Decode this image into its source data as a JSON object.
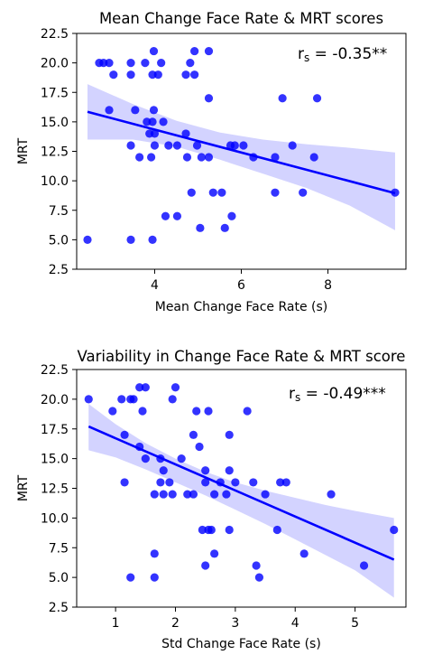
{
  "chart_data": [
    {
      "type": "scatter",
      "title": "Mean Change Face Rate & MRT scores",
      "xlabel": "Mean Change Face Rate (s)",
      "ylabel": "MRT",
      "annotation": {
        "base": "r",
        "sub": "s",
        "text": " = -0.35**"
      },
      "xlim": [
        2.2,
        9.8
      ],
      "ylim": [
        2.5,
        22.5
      ],
      "xticks": [
        4,
        6,
        8
      ],
      "yticks": [
        2.5,
        5.0,
        7.5,
        10.0,
        12.5,
        15.0,
        17.5,
        20.0,
        22.5
      ],
      "grid": false,
      "point_color": "#0000ff",
      "band_color": "#c8c8ff",
      "points": [
        {
          "x": 2.45,
          "y": 5
        },
        {
          "x": 3.45,
          "y": 5
        },
        {
          "x": 3.95,
          "y": 5
        },
        {
          "x": 5.05,
          "y": 6
        },
        {
          "x": 5.62,
          "y": 6
        },
        {
          "x": 5.78,
          "y": 7
        },
        {
          "x": 4.25,
          "y": 7
        },
        {
          "x": 4.52,
          "y": 7
        },
        {
          "x": 4.85,
          "y": 9
        },
        {
          "x": 5.35,
          "y": 9
        },
        {
          "x": 5.55,
          "y": 9
        },
        {
          "x": 6.78,
          "y": 9
        },
        {
          "x": 7.42,
          "y": 9
        },
        {
          "x": 9.55,
          "y": 9
        },
        {
          "x": 3.65,
          "y": 12
        },
        {
          "x": 3.92,
          "y": 12
        },
        {
          "x": 4.75,
          "y": 12
        },
        {
          "x": 5.08,
          "y": 12
        },
        {
          "x": 5.25,
          "y": 12
        },
        {
          "x": 6.28,
          "y": 12
        },
        {
          "x": 6.78,
          "y": 12
        },
        {
          "x": 7.68,
          "y": 12
        },
        {
          "x": 3.45,
          "y": 13
        },
        {
          "x": 4.0,
          "y": 13
        },
        {
          "x": 4.32,
          "y": 13
        },
        {
          "x": 4.52,
          "y": 13
        },
        {
          "x": 4.98,
          "y": 13
        },
        {
          "x": 5.75,
          "y": 13
        },
        {
          "x": 5.85,
          "y": 13
        },
        {
          "x": 6.05,
          "y": 13
        },
        {
          "x": 7.18,
          "y": 13
        },
        {
          "x": 3.88,
          "y": 14
        },
        {
          "x": 4.0,
          "y": 14
        },
        {
          "x": 4.72,
          "y": 14
        },
        {
          "x": 3.82,
          "y": 15
        },
        {
          "x": 3.95,
          "y": 15
        },
        {
          "x": 4.2,
          "y": 15
        },
        {
          "x": 3.55,
          "y": 16
        },
        {
          "x": 3.98,
          "y": 16
        },
        {
          "x": 2.95,
          "y": 16
        },
        {
          "x": 5.25,
          "y": 17
        },
        {
          "x": 6.95,
          "y": 17
        },
        {
          "x": 7.75,
          "y": 17
        },
        {
          "x": 3.45,
          "y": 19
        },
        {
          "x": 3.95,
          "y": 19
        },
        {
          "x": 4.08,
          "y": 19
        },
        {
          "x": 4.92,
          "y": 19
        },
        {
          "x": 3.05,
          "y": 19
        },
        {
          "x": 4.72,
          "y": 19
        },
        {
          "x": 2.72,
          "y": 20
        },
        {
          "x": 2.82,
          "y": 20
        },
        {
          "x": 2.95,
          "y": 20
        },
        {
          "x": 3.45,
          "y": 20
        },
        {
          "x": 3.78,
          "y": 20
        },
        {
          "x": 4.15,
          "y": 20
        },
        {
          "x": 4.82,
          "y": 20
        },
        {
          "x": 3.98,
          "y": 21
        },
        {
          "x": 4.92,
          "y": 21
        },
        {
          "x": 5.25,
          "y": 21
        }
      ],
      "regression": {
        "x": [
          2.45,
          9.55
        ],
        "y": [
          15.85,
          8.95
        ]
      },
      "ci_band": {
        "x": [
          2.45,
          3.5,
          4.5,
          5.5,
          6.5,
          7.5,
          8.5,
          9.55
        ],
        "upper": [
          18.2,
          16.5,
          15.1,
          14.1,
          13.5,
          13.1,
          12.8,
          12.4
        ],
        "lower": [
          13.5,
          13.5,
          12.9,
          11.8,
          10.6,
          9.4,
          7.9,
          5.8
        ]
      }
    },
    {
      "type": "scatter",
      "title": "Variability in Change Face Rate & MRT score",
      "xlabel": "Std Change Face Rate (s)",
      "ylabel": "MRT",
      "annotation": {
        "base": "r",
        "sub": "s",
        "text": " = -0.49***"
      },
      "xlim": [
        0.35,
        5.85
      ],
      "ylim": [
        2.5,
        22.5
      ],
      "xticks": [
        1,
        2,
        3,
        4,
        5
      ],
      "yticks": [
        2.5,
        5.0,
        7.5,
        10.0,
        12.5,
        15.0,
        17.5,
        20.0,
        22.5
      ],
      "grid": false,
      "point_color": "#0000ff",
      "band_color": "#c8c8ff",
      "points": [
        {
          "x": 0.55,
          "y": 20
        },
        {
          "x": 0.95,
          "y": 19
        },
        {
          "x": 1.1,
          "y": 20
        },
        {
          "x": 1.25,
          "y": 20
        },
        {
          "x": 1.3,
          "y": 20
        },
        {
          "x": 1.4,
          "y": 21
        },
        {
          "x": 1.5,
          "y": 21
        },
        {
          "x": 1.45,
          "y": 19
        },
        {
          "x": 1.95,
          "y": 20
        },
        {
          "x": 2.0,
          "y": 21
        },
        {
          "x": 2.35,
          "y": 19
        },
        {
          "x": 2.55,
          "y": 19
        },
        {
          "x": 3.2,
          "y": 19
        },
        {
          "x": 1.15,
          "y": 17
        },
        {
          "x": 2.3,
          "y": 17
        },
        {
          "x": 2.9,
          "y": 17
        },
        {
          "x": 1.4,
          "y": 16
        },
        {
          "x": 2.4,
          "y": 16
        },
        {
          "x": 1.5,
          "y": 15
        },
        {
          "x": 1.75,
          "y": 15
        },
        {
          "x": 2.1,
          "y": 15
        },
        {
          "x": 1.8,
          "y": 14
        },
        {
          "x": 2.5,
          "y": 14
        },
        {
          "x": 2.9,
          "y": 14
        },
        {
          "x": 1.15,
          "y": 13
        },
        {
          "x": 1.75,
          "y": 13
        },
        {
          "x": 1.9,
          "y": 13
        },
        {
          "x": 2.5,
          "y": 13
        },
        {
          "x": 2.75,
          "y": 13
        },
        {
          "x": 3.0,
          "y": 13
        },
        {
          "x": 3.3,
          "y": 13
        },
        {
          "x": 3.75,
          "y": 13
        },
        {
          "x": 3.85,
          "y": 13
        },
        {
          "x": 1.65,
          "y": 12
        },
        {
          "x": 1.8,
          "y": 12
        },
        {
          "x": 1.95,
          "y": 12
        },
        {
          "x": 2.2,
          "y": 12
        },
        {
          "x": 2.3,
          "y": 12
        },
        {
          "x": 2.65,
          "y": 12
        },
        {
          "x": 2.85,
          "y": 12
        },
        {
          "x": 3.5,
          "y": 12
        },
        {
          "x": 4.6,
          "y": 12
        },
        {
          "x": 2.45,
          "y": 9
        },
        {
          "x": 2.55,
          "y": 9
        },
        {
          "x": 2.6,
          "y": 9
        },
        {
          "x": 2.9,
          "y": 9
        },
        {
          "x": 3.7,
          "y": 9
        },
        {
          "x": 5.65,
          "y": 9
        },
        {
          "x": 1.65,
          "y": 7
        },
        {
          "x": 2.65,
          "y": 7
        },
        {
          "x": 4.15,
          "y": 7
        },
        {
          "x": 2.5,
          "y": 6
        },
        {
          "x": 3.35,
          "y": 6
        },
        {
          "x": 5.15,
          "y": 6
        },
        {
          "x": 1.25,
          "y": 5
        },
        {
          "x": 1.65,
          "y": 5
        },
        {
          "x": 3.4,
          "y": 5
        }
      ],
      "regression": {
        "x": [
          0.55,
          5.65
        ],
        "y": [
          17.7,
          6.5
        ]
      },
      "ci_band": {
        "x": [
          0.55,
          1.0,
          1.5,
          2.0,
          2.5,
          3.0,
          3.5,
          4.0,
          4.5,
          5.0,
          5.65
        ],
        "upper": [
          19.6,
          17.9,
          16.3,
          15.0,
          13.9,
          13.0,
          12.3,
          11.7,
          11.1,
          10.6,
          10.0
        ],
        "lower": [
          15.7,
          15.1,
          14.1,
          13.0,
          11.9,
          10.7,
          9.5,
          8.2,
          6.9,
          5.6,
          3.3
        ]
      }
    }
  ]
}
